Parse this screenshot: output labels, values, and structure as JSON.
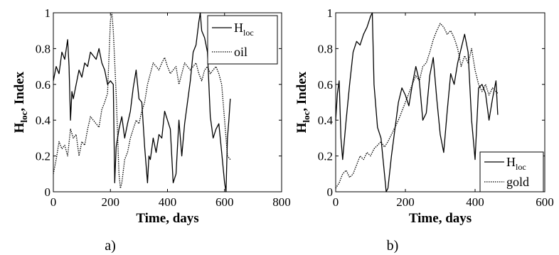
{
  "chart_data": [
    {
      "type": "line",
      "panel": "a)",
      "xlabel": "Time, days",
      "ylabel_main": "H",
      "ylabel_sub": "loc",
      "ylabel_rest": ", Index",
      "xlim": [
        0,
        800
      ],
      "ylim": [
        0,
        1
      ],
      "xticks": [
        0,
        200,
        400,
        600,
        800
      ],
      "yticks": [
        0,
        0.2,
        0.4,
        0.6,
        0.8,
        1
      ],
      "ytick_labels": [
        "0",
        "0.2",
        "0.4",
        "0.6",
        "0.8",
        "1"
      ],
      "grid": false,
      "legend_position": "top-right",
      "series": [
        {
          "name": "H",
          "name_sub": "loc",
          "style": "solid",
          "x": [
            0,
            10,
            20,
            30,
            40,
            50,
            55,
            60,
            65,
            70,
            80,
            90,
            100,
            110,
            120,
            130,
            140,
            150,
            160,
            170,
            180,
            190,
            200,
            210,
            215,
            220,
            230,
            240,
            250,
            260,
            270,
            280,
            290,
            300,
            310,
            320,
            330,
            335,
            340,
            350,
            360,
            370,
            380,
            390,
            400,
            410,
            420,
            430,
            440,
            450,
            460,
            470,
            480,
            490,
            500,
            510,
            515,
            520,
            530,
            540,
            550,
            560,
            570,
            580,
            590,
            600,
            605,
            610,
            615,
            620
          ],
          "y": [
            0.62,
            0.7,
            0.66,
            0.78,
            0.74,
            0.85,
            0.7,
            0.4,
            0.56,
            0.52,
            0.6,
            0.68,
            0.64,
            0.72,
            0.7,
            0.78,
            0.76,
            0.74,
            0.8,
            0.72,
            0.68,
            0.6,
            0.62,
            0.6,
            0.05,
            0.25,
            0.35,
            0.42,
            0.3,
            0.38,
            0.45,
            0.58,
            0.68,
            0.52,
            0.5,
            0.25,
            0.05,
            0.2,
            0.18,
            0.3,
            0.22,
            0.32,
            0.3,
            0.45,
            0.4,
            0.35,
            0.05,
            0.1,
            0.4,
            0.2,
            0.38,
            0.5,
            0.62,
            0.78,
            0.82,
            0.95,
            1.0,
            0.9,
            0.86,
            0.78,
            0.42,
            0.3,
            0.35,
            0.38,
            0.22,
            0.05,
            0.0,
            0.3,
            0.4,
            0.52
          ]
        },
        {
          "name": "oil",
          "style": "dotted",
          "x": [
            0,
            10,
            20,
            30,
            40,
            50,
            60,
            70,
            80,
            90,
            100,
            110,
            120,
            130,
            140,
            150,
            160,
            170,
            180,
            190,
            200,
            205,
            210,
            220,
            230,
            235,
            240,
            250,
            260,
            270,
            280,
            290,
            300,
            310,
            320,
            330,
            340,
            350,
            360,
            370,
            380,
            390,
            400,
            410,
            420,
            430,
            440,
            450,
            460,
            470,
            480,
            490,
            500,
            510,
            520,
            530,
            540,
            550,
            560,
            570,
            580,
            590,
            600,
            610,
            620
          ],
          "y": [
            0.1,
            0.18,
            0.28,
            0.24,
            0.26,
            0.2,
            0.35,
            0.3,
            0.32,
            0.2,
            0.28,
            0.26,
            0.35,
            0.42,
            0.4,
            0.38,
            0.36,
            0.46,
            0.5,
            0.55,
            0.96,
            1.0,
            0.9,
            0.55,
            0.1,
            0.02,
            0.05,
            0.18,
            0.22,
            0.3,
            0.35,
            0.4,
            0.38,
            0.45,
            0.5,
            0.6,
            0.66,
            0.72,
            0.7,
            0.68,
            0.72,
            0.75,
            0.7,
            0.66,
            0.68,
            0.7,
            0.6,
            0.66,
            0.72,
            0.7,
            0.68,
            0.7,
            0.72,
            0.66,
            0.62,
            0.68,
            0.7,
            0.66,
            0.68,
            0.7,
            0.66,
            0.6,
            0.4,
            0.2,
            0.18
          ]
        }
      ]
    },
    {
      "type": "line",
      "panel": "b)",
      "xlabel": "Time, days",
      "ylabel_main": "H",
      "ylabel_sub": "loc",
      "ylabel_rest": ", Index",
      "xlim": [
        0,
        600
      ],
      "ylim": [
        0,
        1
      ],
      "xticks": [
        0,
        200,
        400,
        600
      ],
      "yticks": [
        0,
        0.2,
        0.4,
        0.6,
        0.8,
        1
      ],
      "ytick_labels": [
        "0",
        "0.2",
        "0.4",
        "0.6",
        "0.8",
        "1"
      ],
      "grid": false,
      "legend_position": "bottom-right",
      "series": [
        {
          "name": "H",
          "name_sub": "loc",
          "style": "solid",
          "x": [
            0,
            5,
            10,
            15,
            20,
            30,
            40,
            50,
            60,
            70,
            80,
            90,
            100,
            105,
            110,
            120,
            130,
            140,
            145,
            150,
            160,
            170,
            180,
            190,
            200,
            210,
            220,
            230,
            240,
            250,
            260,
            270,
            280,
            290,
            300,
            310,
            320,
            330,
            340,
            350,
            360,
            370,
            380,
            390,
            400,
            410,
            420,
            430,
            440,
            450,
            460,
            465
          ],
          "y": [
            0.4,
            0.55,
            0.62,
            0.3,
            0.18,
            0.4,
            0.6,
            0.78,
            0.84,
            0.82,
            0.88,
            0.92,
            0.98,
            1.0,
            0.6,
            0.36,
            0.3,
            0.1,
            0.0,
            0.02,
            0.2,
            0.35,
            0.5,
            0.58,
            0.54,
            0.48,
            0.6,
            0.7,
            0.62,
            0.4,
            0.44,
            0.65,
            0.75,
            0.52,
            0.32,
            0.22,
            0.45,
            0.66,
            0.6,
            0.72,
            0.8,
            0.88,
            0.78,
            0.4,
            0.18,
            0.58,
            0.6,
            0.55,
            0.4,
            0.52,
            0.62,
            0.43
          ]
        },
        {
          "name": "gold",
          "style": "dotted",
          "x": [
            0,
            10,
            20,
            30,
            40,
            50,
            60,
            70,
            80,
            90,
            100,
            110,
            120,
            130,
            140,
            150,
            160,
            170,
            180,
            190,
            200,
            210,
            220,
            230,
            240,
            250,
            260,
            270,
            280,
            290,
            300,
            310,
            320,
            330,
            340,
            350,
            360,
            370,
            380,
            390,
            400,
            410,
            420,
            430,
            440,
            450,
            460,
            465
          ],
          "y": [
            0.02,
            0.05,
            0.1,
            0.12,
            0.08,
            0.1,
            0.15,
            0.2,
            0.18,
            0.22,
            0.2,
            0.24,
            0.26,
            0.28,
            0.25,
            0.28,
            0.32,
            0.36,
            0.4,
            0.45,
            0.5,
            0.55,
            0.6,
            0.65,
            0.62,
            0.7,
            0.72,
            0.78,
            0.85,
            0.9,
            0.94,
            0.92,
            0.88,
            0.9,
            0.86,
            0.8,
            0.7,
            0.76,
            0.72,
            0.8,
            0.68,
            0.6,
            0.56,
            0.6,
            0.54,
            0.58,
            0.56,
            0.55
          ]
        }
      ]
    }
  ]
}
